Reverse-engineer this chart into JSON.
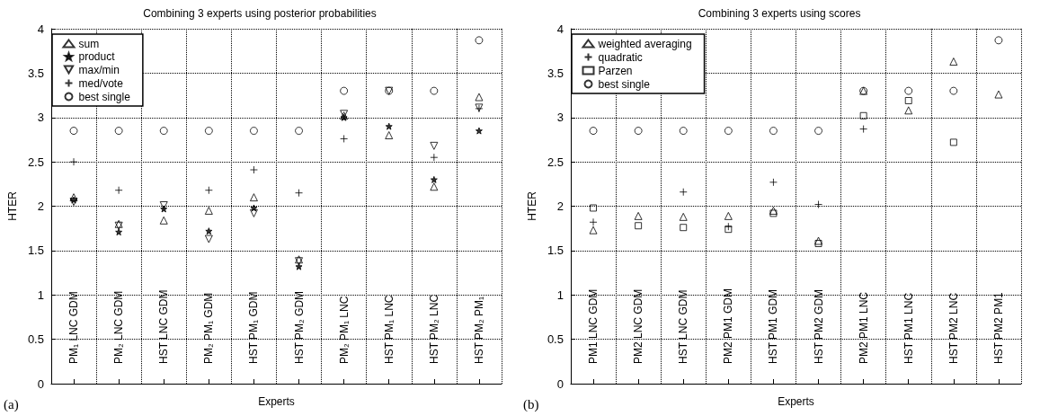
{
  "chart_data": [
    {
      "type": "scatter",
      "title": "Combining 3 experts using posterior probabilities",
      "xlabel": "Experts",
      "ylabel": "HTER",
      "annotations": [
        "(a)"
      ],
      "categories": [
        "PM₁ LNC GDM",
        "PM₂ LNC GDM",
        "HST LNC GDM",
        "PM₂ PM₁ GDM",
        "HST PM₁ GDM",
        "HST PM₂ GDM",
        "PM₂ PM₁ LNC",
        "HST PM₁ LNC",
        "HST PM₂ LNC",
        "HST PM₂ PM₁"
      ],
      "ylim": [
        0,
        4
      ],
      "yticks": [
        0,
        0.5,
        1,
        1.5,
        2,
        2.5,
        3,
        3.5,
        4
      ],
      "grid": true,
      "legend": "top left",
      "series": [
        {
          "name": "sum",
          "color": "#000000",
          "marker": "triangle",
          "values": [
            2.1,
            1.8,
            1.84,
            1.95,
            2.1,
            1.4,
            3.02,
            2.8,
            2.22,
            3.23
          ]
        },
        {
          "name": "product",
          "color": "#000000",
          "marker": "star",
          "values": [
            2.07,
            1.71,
            1.97,
            1.72,
            1.98,
            1.32,
            3.0,
            2.9,
            2.3,
            2.85
          ]
        },
        {
          "name": "max/min",
          "color": "#000000",
          "marker": "triangle-down",
          "values": [
            2.05,
            1.78,
            2.01,
            1.63,
            1.92,
            1.38,
            3.04,
            3.3,
            2.68,
            3.11
          ]
        },
        {
          "name": "med/vote",
          "color": "#000000",
          "marker": "cross",
          "values": [
            2.5,
            2.18,
            null,
            2.18,
            2.41,
            2.15,
            2.76,
            null,
            2.55,
            3.1
          ]
        },
        {
          "name": "best single",
          "color": "#000000",
          "marker": "circle",
          "values": [
            2.85,
            2.85,
            2.85,
            2.85,
            2.85,
            2.85,
            3.3,
            3.3,
            3.3,
            3.87
          ]
        }
      ]
    },
    {
      "type": "scatter",
      "title": "Combining 3 experts using scores",
      "xlabel": "Experts",
      "ylabel": "HTER",
      "annotations": [
        "(b)"
      ],
      "categories": [
        "PM1 LNC GDM",
        "PM2 LNC GDM",
        "HST LNC GDM",
        "PM2 PM1 GDM",
        "HST PM1 GDM",
        "HST PM2 GDM",
        "PM2 PM1 LNC",
        "HST PM1 LNC",
        "HST PM2 LNC",
        "HST PM2 PM1"
      ],
      "ylim": [
        0,
        4
      ],
      "yticks": [
        0,
        0.5,
        1,
        1.5,
        2,
        2.5,
        3,
        3.5,
        4
      ],
      "grid": true,
      "legend": "top left",
      "series": [
        {
          "name": "weighted averaging",
          "color": "#000000",
          "marker": "triangle",
          "values": [
            1.73,
            1.89,
            1.88,
            1.89,
            1.95,
            1.61,
            3.3,
            3.08,
            3.63,
            3.26
          ]
        },
        {
          "name": "quadratic",
          "color": "#000000",
          "marker": "cross",
          "values": [
            1.82,
            null,
            2.16,
            1.77,
            2.27,
            2.02,
            2.87,
            null,
            null,
            null
          ]
        },
        {
          "name": "Parzen",
          "color": "#000000",
          "marker": "square",
          "values": [
            1.98,
            1.78,
            1.76,
            1.74,
            1.92,
            1.58,
            3.02,
            3.19,
            2.72,
            null
          ]
        },
        {
          "name": "best single",
          "color": "#000000",
          "marker": "circle",
          "values": [
            2.85,
            2.85,
            2.85,
            2.85,
            2.85,
            2.85,
            3.3,
            3.3,
            3.3,
            3.87
          ]
        }
      ]
    }
  ]
}
